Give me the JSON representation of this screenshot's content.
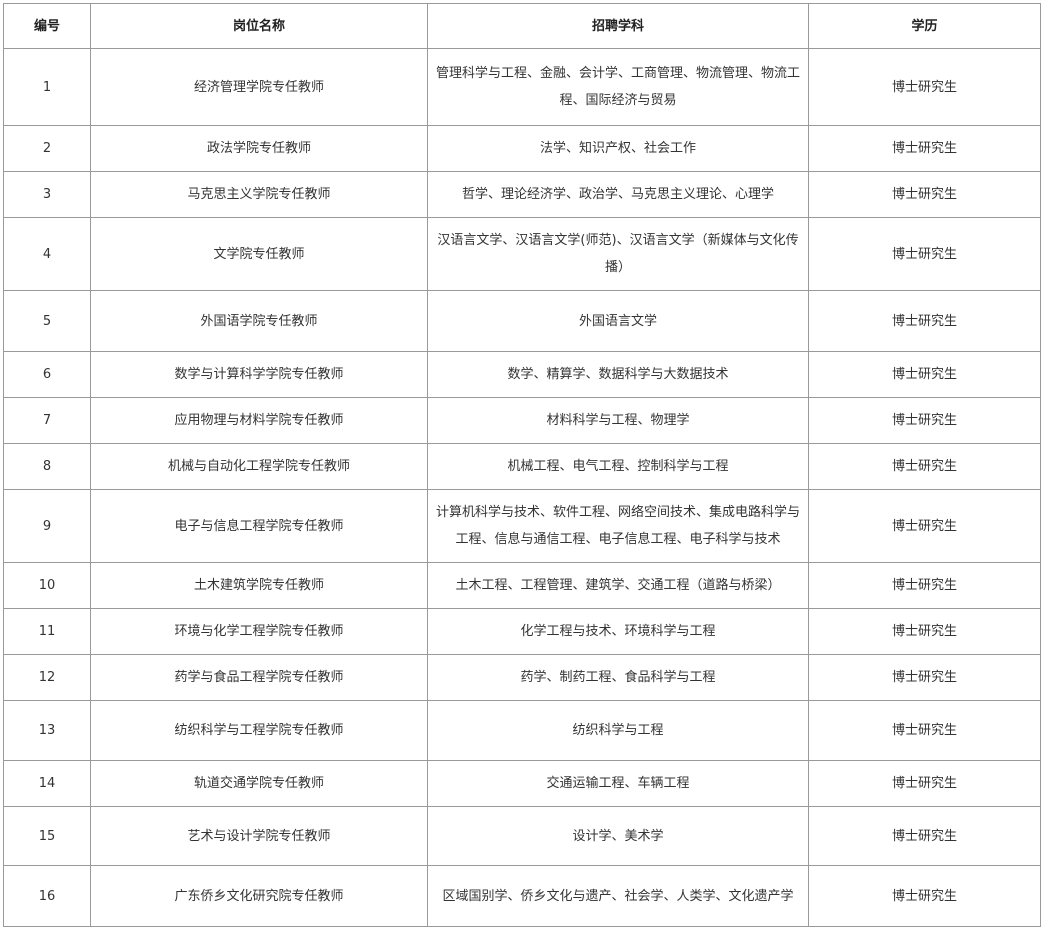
{
  "table": {
    "header": [
      "编号",
      "岗位名称",
      "招聘学科",
      "学历"
    ],
    "rows": [
      [
        "1",
        "经济管理学院专任教师",
        "管理科学与工程、金融、会计学、工商管理、物流管理、物流工程、国际经济与贸易",
        "博士研究生"
      ],
      [
        "2",
        "政法学院专任教师",
        "法学、知识产权、社会工作",
        "博士研究生"
      ],
      [
        "3",
        "马克思主义学院专任教师",
        "哲学、理论经济学、政治学、马克思主义理论、心理学",
        "博士研究生"
      ],
      [
        "4",
        "文学院专任教师",
        "汉语言文学、汉语言文学(师范)、汉语言文学（新媒体与文化传播）",
        "博士研究生"
      ],
      [
        "5",
        "外国语学院专任教师",
        "外国语言文学",
        "博士研究生"
      ],
      [
        "6",
        "数学与计算科学学院专任教师",
        "数学、精算学、数据科学与大数据技术",
        "博士研究生"
      ],
      [
        "7",
        "应用物理与材料学院专任教师",
        "材料科学与工程、物理学",
        "博士研究生"
      ],
      [
        "8",
        "机械与自动化工程学院专任教师",
        "机械工程、电气工程、控制科学与工程",
        "博士研究生"
      ],
      [
        "9",
        "电子与信息工程学院专任教师",
        "计算机科学与技术、软件工程、网络空间技术、集成电路科学与工程、信息与通信工程、电子信息工程、电子科学与技术",
        "博士研究生"
      ],
      [
        "10",
        "土木建筑学院专任教师",
        "土木工程、工程管理、建筑学、交通工程（道路与桥梁）",
        "博士研究生"
      ],
      [
        "11",
        "环境与化学工程学院专任教师",
        "化学工程与技术、环境科学与工程",
        "博士研究生"
      ],
      [
        "12",
        "药学与食品工程学院专任教师",
        "药学、制药工程、食品科学与工程",
        "博士研究生"
      ],
      [
        "13",
        "纺织科学与工程学院专任教师",
        "纺织科学与工程",
        "博士研究生"
      ],
      [
        "14",
        "轨道交通学院专任教师",
        "交通运输工程、车辆工程",
        "博士研究生"
      ],
      [
        "15",
        "艺术与设计学院专任教师",
        "设计学、美术学",
        "博士研究生"
      ],
      [
        "16",
        "广东侨乡文化研究院专任教师",
        "区域国别学、侨乡文化与遗产、社会学、人类学、文化遗产学",
        "博士研究生"
      ]
    ]
  }
}
